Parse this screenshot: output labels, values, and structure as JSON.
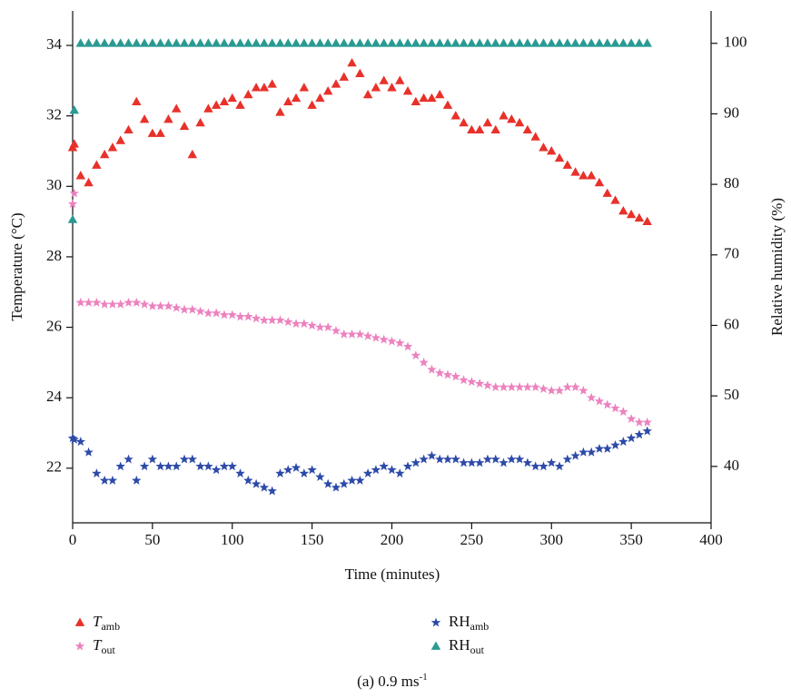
{
  "chart_data": {
    "type": "scatter",
    "xlabel": "Time (minutes)",
    "ylabel": "Temperature (°C)",
    "y2label": "Relative humidity (%)",
    "caption": {
      "text": "(a) 0.9 ms",
      "sup": "-1"
    },
    "x": [
      0,
      1,
      5,
      10,
      15,
      20,
      25,
      30,
      35,
      40,
      45,
      50,
      55,
      60,
      65,
      70,
      75,
      80,
      85,
      90,
      95,
      100,
      105,
      110,
      115,
      120,
      125,
      130,
      135,
      140,
      145,
      150,
      155,
      160,
      165,
      170,
      175,
      180,
      185,
      190,
      195,
      200,
      205,
      210,
      215,
      220,
      225,
      230,
      235,
      240,
      245,
      250,
      255,
      260,
      265,
      270,
      275,
      280,
      285,
      290,
      295,
      300,
      305,
      310,
      315,
      320,
      325,
      330,
      335,
      340,
      345,
      350,
      355,
      360
    ],
    "xlim": [
      0,
      400
    ],
    "xticks": [
      0,
      50,
      100,
      150,
      200,
      250,
      300,
      350,
      400
    ],
    "ylim": [
      20.45,
      34.98
    ],
    "yticks": [
      22,
      24,
      26,
      28,
      30,
      32,
      34
    ],
    "y2lim": [
      32,
      104.6
    ],
    "y2ticks": [
      40,
      50,
      60,
      70,
      80,
      90,
      100
    ],
    "series": [
      {
        "name": "T",
        "name_sub": "amb",
        "color": "#e8312a",
        "marker": "triangle",
        "values": [
          31.1,
          31.2,
          30.3,
          30.1,
          30.6,
          30.9,
          31.1,
          31.3,
          31.6,
          32.4,
          31.9,
          31.5,
          31.5,
          31.9,
          32.2,
          31.7,
          30.9,
          31.8,
          32.2,
          32.3,
          32.4,
          32.5,
          32.3,
          32.6,
          32.8,
          32.8,
          32.9,
          32.1,
          32.4,
          32.5,
          32.8,
          32.3,
          32.5,
          32.7,
          32.9,
          33.1,
          33.5,
          33.2,
          32.6,
          32.8,
          33.0,
          32.8,
          33.0,
          32.7,
          32.4,
          32.5,
          32.5,
          32.6,
          32.3,
          32.0,
          31.8,
          31.6,
          31.6,
          31.8,
          31.6,
          32.0,
          31.9,
          31.8,
          31.6,
          31.4,
          31.1,
          31.0,
          30.8,
          30.6,
          30.4,
          30.3,
          30.3,
          30.1,
          29.8,
          29.6,
          29.3,
          29.2,
          29.1,
          29.0
        ]
      },
      {
        "name": "T",
        "name_sub": "out",
        "color": "#ec82c0",
        "marker": "star",
        "values": [
          29.5,
          29.8,
          26.7,
          26.7,
          26.7,
          26.65,
          26.65,
          26.65,
          26.7,
          26.7,
          26.65,
          26.6,
          26.6,
          26.6,
          26.55,
          26.5,
          26.5,
          26.45,
          26.4,
          26.4,
          26.35,
          26.35,
          26.3,
          26.3,
          26.25,
          26.2,
          26.2,
          26.2,
          26.15,
          26.1,
          26.1,
          26.05,
          26.0,
          26.0,
          25.9,
          25.8,
          25.8,
          25.8,
          25.75,
          25.7,
          25.65,
          25.6,
          25.55,
          25.45,
          25.2,
          25.0,
          24.8,
          24.7,
          24.65,
          24.6,
          24.5,
          24.45,
          24.4,
          24.35,
          24.3,
          24.3,
          24.3,
          24.3,
          24.3,
          24.3,
          24.25,
          24.2,
          24.2,
          24.3,
          24.3,
          24.2,
          24.0,
          23.9,
          23.8,
          23.7,
          23.6,
          23.4,
          23.3,
          23.3
        ]
      },
      {
        "name": "RH",
        "name_sub": "amb",
        "color": "#2d4aa8",
        "marker": "star",
        "axis": "y2",
        "values": [
          44,
          43.8,
          43.5,
          42,
          39,
          38,
          38,
          40,
          41,
          38,
          40,
          41,
          40,
          40,
          40,
          41,
          41,
          40,
          40,
          39.5,
          40,
          40,
          39,
          38,
          37.5,
          37,
          36.5,
          39,
          39.5,
          39.8,
          39,
          39.5,
          38.5,
          37.5,
          37,
          37.5,
          38,
          38,
          39,
          39.5,
          40,
          39.5,
          39,
          40,
          40.5,
          41,
          41.5,
          41,
          41,
          41,
          40.5,
          40.5,
          40.5,
          41,
          41,
          40.5,
          41,
          41,
          40.5,
          40,
          40,
          40.5,
          40,
          41,
          41.5,
          42,
          42,
          42.5,
          42.5,
          43,
          43.5,
          44,
          44.5,
          45
        ]
      },
      {
        "name": "RH",
        "name_sub": "out",
        "color": "#2a9a94",
        "marker": "triangle",
        "axis": "y2",
        "values": [
          75,
          90.5,
          100,
          100,
          100,
          100,
          100,
          100,
          100,
          100,
          100,
          100,
          100,
          100,
          100,
          100,
          100,
          100,
          100,
          100,
          100,
          100,
          100,
          100,
          100,
          100,
          100,
          100,
          100,
          100,
          100,
          100,
          100,
          100,
          100,
          100,
          100,
          100,
          100,
          100,
          100,
          100,
          100,
          100,
          100,
          100,
          100,
          100,
          100,
          100,
          100,
          100,
          100,
          100,
          100,
          100,
          100,
          100,
          100,
          100,
          100,
          100,
          100,
          100,
          100,
          100,
          100,
          100,
          100,
          100,
          100,
          100,
          100,
          100
        ]
      }
    ]
  }
}
